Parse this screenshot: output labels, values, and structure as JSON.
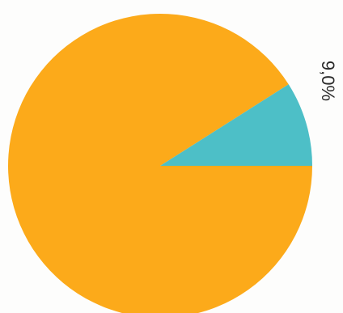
{
  "chart_data": {
    "type": "pie",
    "title": "",
    "slices": [
      {
        "label": "",
        "value": 91.0,
        "color": "#FCAA1A",
        "display": ""
      },
      {
        "label": "",
        "value": 9.0,
        "color": "#4DBFC7",
        "display": "9,0%"
      }
    ],
    "legend": "none"
  }
}
